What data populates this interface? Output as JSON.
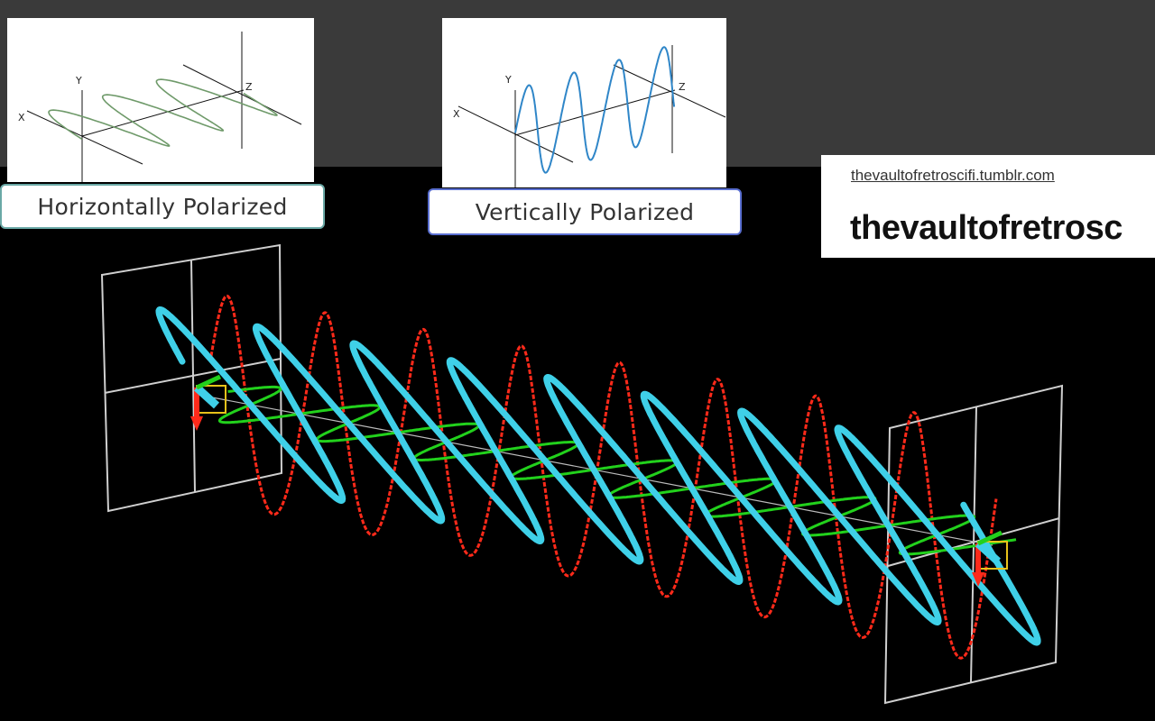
{
  "panels": {
    "horizontal": {
      "caption": "Horizontally Polarized",
      "axis_labels": {
        "x": "X",
        "y": "Y",
        "z": "Z"
      },
      "wave_color": "#6f9a6a"
    },
    "vertical": {
      "caption": "Vertically Polarized",
      "axis_labels": {
        "x": "X",
        "y": "Y",
        "z": "Z"
      },
      "wave_color": "#2f86c8"
    }
  },
  "watermark": {
    "url": "thevaultofretroscifi.tumblr.com",
    "title": "thevaultofretrosc"
  },
  "visualization": {
    "background": "#000000",
    "colors": {
      "vertical_component": "#ff2a1a",
      "horizontal_component": "#22d11c",
      "resultant": "#3fd0e8",
      "frame": "#cfcfcf",
      "vector_marker": "#e8c21a"
    },
    "components": [
      "vertical_component",
      "horizontal_component",
      "resultant"
    ],
    "cycles_shown": 8
  }
}
